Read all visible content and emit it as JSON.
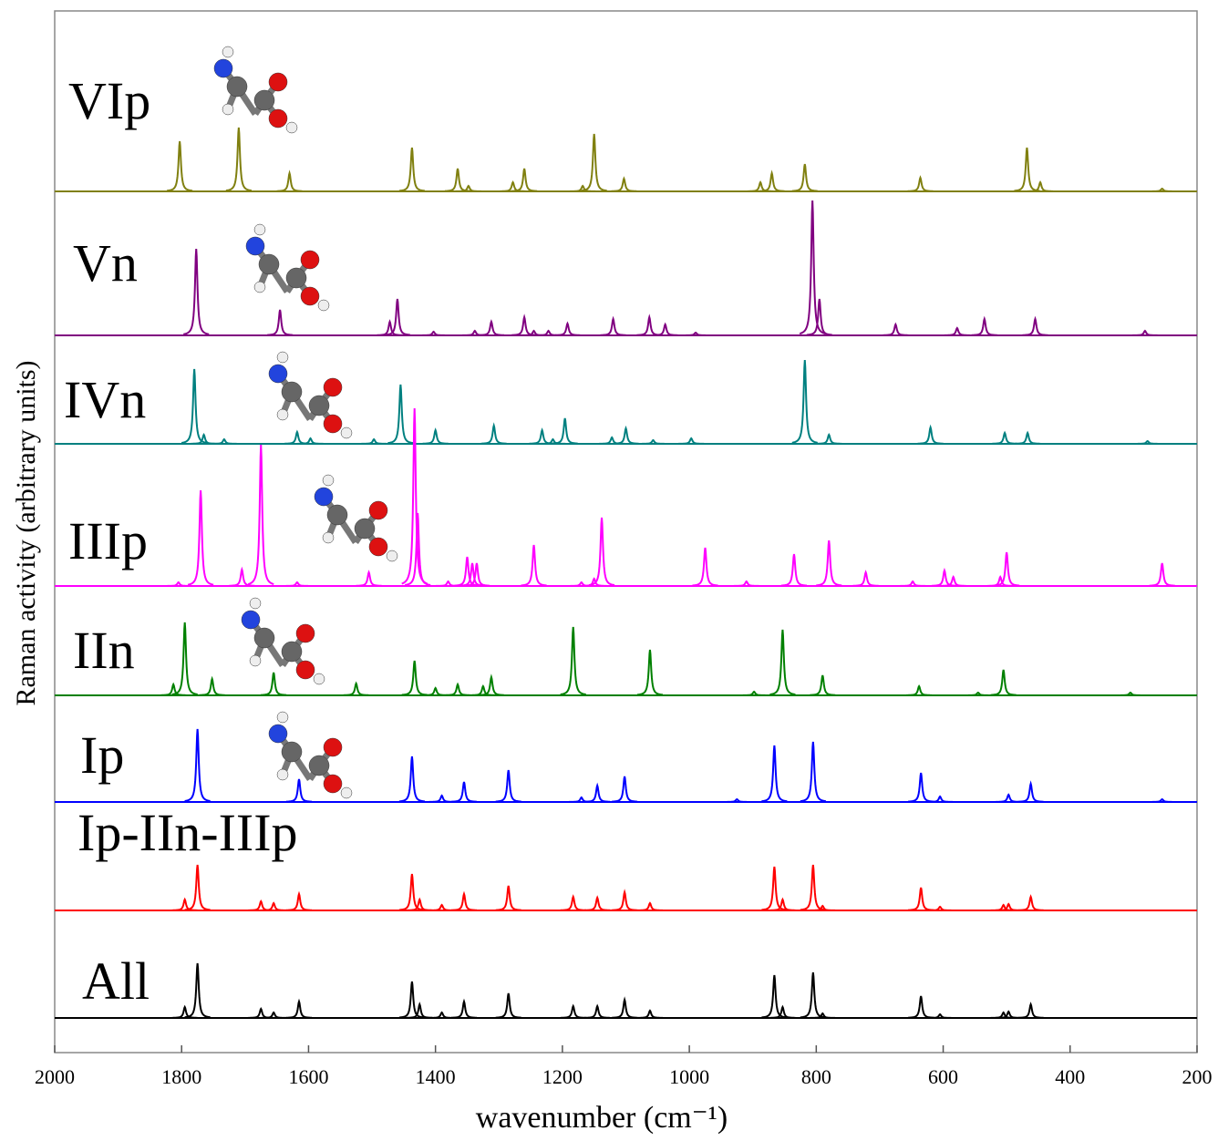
{
  "chart_data": {
    "type": "stacked_spectra",
    "xlabel": "wavenumber (cm⁻¹)",
    "ylabel": "Raman activity (arbitrary units)",
    "xlim": [
      2000,
      200
    ],
    "xticks": [
      2000,
      1800,
      1600,
      1400,
      1200,
      1000,
      800,
      600,
      400,
      200
    ],
    "series": [
      {
        "name": "VIp",
        "color": "#808010",
        "x": [
          1803,
          1710,
          1630,
          1437,
          1365,
          1348,
          1278,
          1260,
          1168,
          1150,
          1103,
          888,
          870,
          818,
          636,
          468,
          447,
          255
        ],
        "values": [
          55,
          70,
          20,
          48,
          25,
          6,
          10,
          25,
          6,
          63,
          14,
          10,
          20,
          30,
          15,
          48,
          10,
          3
        ]
      },
      {
        "name": "Vn",
        "color": "#800080",
        "x": [
          1777,
          1645,
          1472,
          1460,
          1403,
          1338,
          1312,
          1260,
          1245,
          1222,
          1192,
          1120,
          1063,
          1038,
          990,
          806,
          795,
          675,
          578,
          535,
          455,
          282
        ],
        "values": [
          95,
          28,
          15,
          40,
          4,
          5,
          15,
          20,
          5,
          5,
          13,
          18,
          20,
          12,
          3,
          148,
          40,
          12,
          8,
          18,
          18,
          5
        ]
      },
      {
        "name": "IVn",
        "color": "#008080",
        "x": [
          1780,
          1765,
          1733,
          1618,
          1597,
          1497,
          1455,
          1400,
          1308,
          1232,
          1215,
          1196,
          1122,
          1100,
          1057,
          997,
          818,
          780,
          620,
          503,
          467,
          278
        ],
        "values": [
          82,
          10,
          5,
          13,
          6,
          5,
          65,
          15,
          20,
          15,
          5,
          28,
          7,
          17,
          4,
          6,
          92,
          10,
          18,
          12,
          12,
          3
        ]
      },
      {
        "name": "IIIp",
        "color": "#ff00ff",
        "x": [
          1805,
          1770,
          1705,
          1675,
          1618,
          1505,
          1433,
          1428,
          1380,
          1350,
          1342,
          1335,
          1245,
          1170,
          1150,
          1138,
          975,
          910,
          835,
          780,
          722,
          648,
          598,
          584,
          510,
          500,
          255
        ],
        "values": [
          4,
          105,
          18,
          155,
          4,
          15,
          195,
          80,
          5,
          32,
          25,
          25,
          45,
          4,
          8,
          75,
          42,
          5,
          35,
          50,
          15,
          5,
          17,
          10,
          10,
          37,
          25
        ]
      },
      {
        "name": "IIn",
        "color": "#008000",
        "x": [
          1813,
          1795,
          1752,
          1655,
          1525,
          1433,
          1400,
          1365,
          1325,
          1312,
          1183,
          1062,
          898,
          853,
          790,
          638,
          545,
          505,
          305
        ],
        "values": [
          12,
          80,
          18,
          25,
          13,
          38,
          8,
          12,
          10,
          20,
          75,
          50,
          4,
          72,
          22,
          10,
          3,
          28,
          3
        ]
      },
      {
        "name": "Ip",
        "color": "#0000ff",
        "x": [
          1775,
          1615,
          1437,
          1390,
          1355,
          1285,
          1170,
          1145,
          1102,
          925,
          866,
          805,
          635,
          605,
          497,
          462,
          255
        ],
        "values": [
          80,
          25,
          50,
          7,
          22,
          35,
          5,
          18,
          28,
          3,
          62,
          66,
          32,
          6,
          8,
          20,
          3
        ]
      },
      {
        "name": "Ip-IIn-IIIp",
        "color": "#ff0000",
        "x": [
          1795,
          1775,
          1675,
          1655,
          1615,
          1437,
          1425,
          1390,
          1355,
          1285,
          1183,
          1145,
          1102,
          1062,
          866,
          853,
          805,
          790,
          635,
          605,
          505,
          497,
          462
        ],
        "values": [
          12,
          50,
          10,
          8,
          18,
          40,
          12,
          6,
          18,
          27,
          15,
          14,
          20,
          8,
          48,
          12,
          50,
          5,
          25,
          4,
          6,
          7,
          15
        ]
      },
      {
        "name": "All",
        "color": "#000000",
        "x": [
          1795,
          1775,
          1675,
          1655,
          1615,
          1437,
          1425,
          1390,
          1355,
          1285,
          1183,
          1145,
          1102,
          1062,
          866,
          853,
          805,
          790,
          635,
          605,
          505,
          497,
          462
        ],
        "values": [
          12,
          60,
          10,
          6,
          18,
          40,
          15,
          6,
          18,
          27,
          13,
          13,
          20,
          8,
          47,
          12,
          50,
          5,
          24,
          4,
          6,
          7,
          15
        ]
      }
    ]
  }
}
